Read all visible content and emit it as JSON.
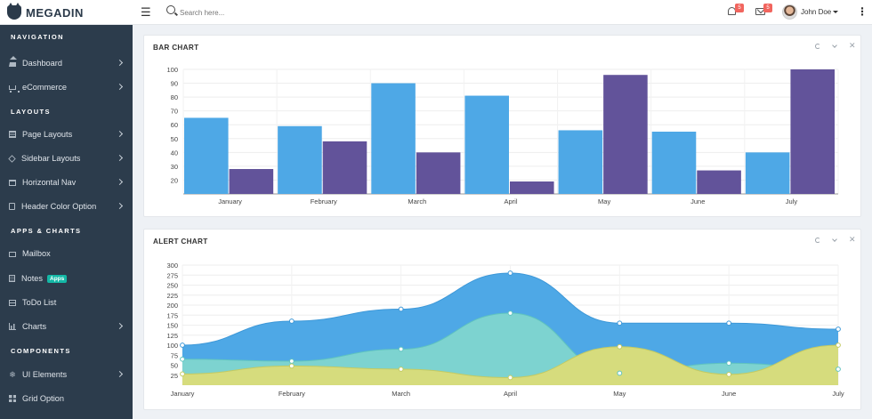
{
  "header": {
    "logo_text": "MEGADIN",
    "search_placeholder": "Search here...",
    "notifications_count": "5",
    "messages_count": "5",
    "user_name": "John Doe"
  },
  "sidebar": {
    "sections": [
      {
        "title": "NAVIGATION",
        "items": [
          {
            "label": "Dashboard",
            "icon": "home-icon",
            "chevron": true
          },
          {
            "label": "eCommerce",
            "icon": "cart-icon",
            "chevron": true
          }
        ]
      },
      {
        "title": "LAYOUTS",
        "items": [
          {
            "label": "Page Layouts",
            "icon": "layout-icon",
            "chevron": true
          },
          {
            "label": "Sidebar Layouts",
            "icon": "diamond-icon",
            "chevron": true
          },
          {
            "label": "Horizontal Nav",
            "icon": "horizontal-nav-icon",
            "chevron": true
          },
          {
            "label": "Header Color Option",
            "icon": "document-icon",
            "chevron": true
          }
        ]
      },
      {
        "title": "APPS & CHARTS",
        "items": [
          {
            "label": "Mailbox",
            "icon": "mail-icon",
            "chevron": false
          },
          {
            "label": "Notes",
            "icon": "notes-icon",
            "chevron": false,
            "badge": "Apps"
          },
          {
            "label": "ToDo List",
            "icon": "list-icon",
            "chevron": false
          },
          {
            "label": "Charts",
            "icon": "chart-icon",
            "chevron": true
          }
        ]
      },
      {
        "title": "COMPONENTS",
        "items": [
          {
            "label": "UI Elements",
            "icon": "snowflake-icon",
            "chevron": true
          },
          {
            "label": "Grid Option",
            "icon": "grid-icon",
            "chevron": false
          }
        ]
      }
    ]
  },
  "bar_card": {
    "title": "BAR CHART"
  },
  "alert_card": {
    "title": "ALERT CHART"
  },
  "colors": {
    "blue": "#4ea8e6",
    "purple": "#62539a",
    "teal": "#7dd3d0",
    "yellow": "#d6dc7d"
  },
  "chart_data": [
    {
      "type": "bar",
      "categories": [
        "January",
        "February",
        "March",
        "April",
        "May",
        "June",
        "July"
      ],
      "series": [
        {
          "values": [
            65,
            59,
            90,
            81,
            56,
            55,
            40
          ]
        },
        {
          "values": [
            28,
            48,
            40,
            19,
            96,
            27,
            100
          ]
        }
      ],
      "yticks": [
        20,
        30,
        40,
        50,
        60,
        70,
        80,
        90,
        100
      ],
      "ylim": [
        10,
        100
      ],
      "grid": true
    },
    {
      "type": "area",
      "categories": [
        "January",
        "February",
        "March",
        "April",
        "May",
        "June",
        "July"
      ],
      "series": [
        {
          "values": [
            100,
            160,
            190,
            280,
            155,
            155,
            140
          ]
        },
        {
          "values": [
            65,
            60,
            90,
            180,
            30,
            55,
            40
          ]
        },
        {
          "values": [
            28,
            48,
            40,
            19,
            96,
            27,
            100
          ]
        }
      ],
      "yticks": [
        25,
        50,
        75,
        100,
        125,
        150,
        175,
        200,
        225,
        250,
        275,
        300
      ],
      "ylim": [
        0,
        300
      ],
      "grid": true
    }
  ]
}
